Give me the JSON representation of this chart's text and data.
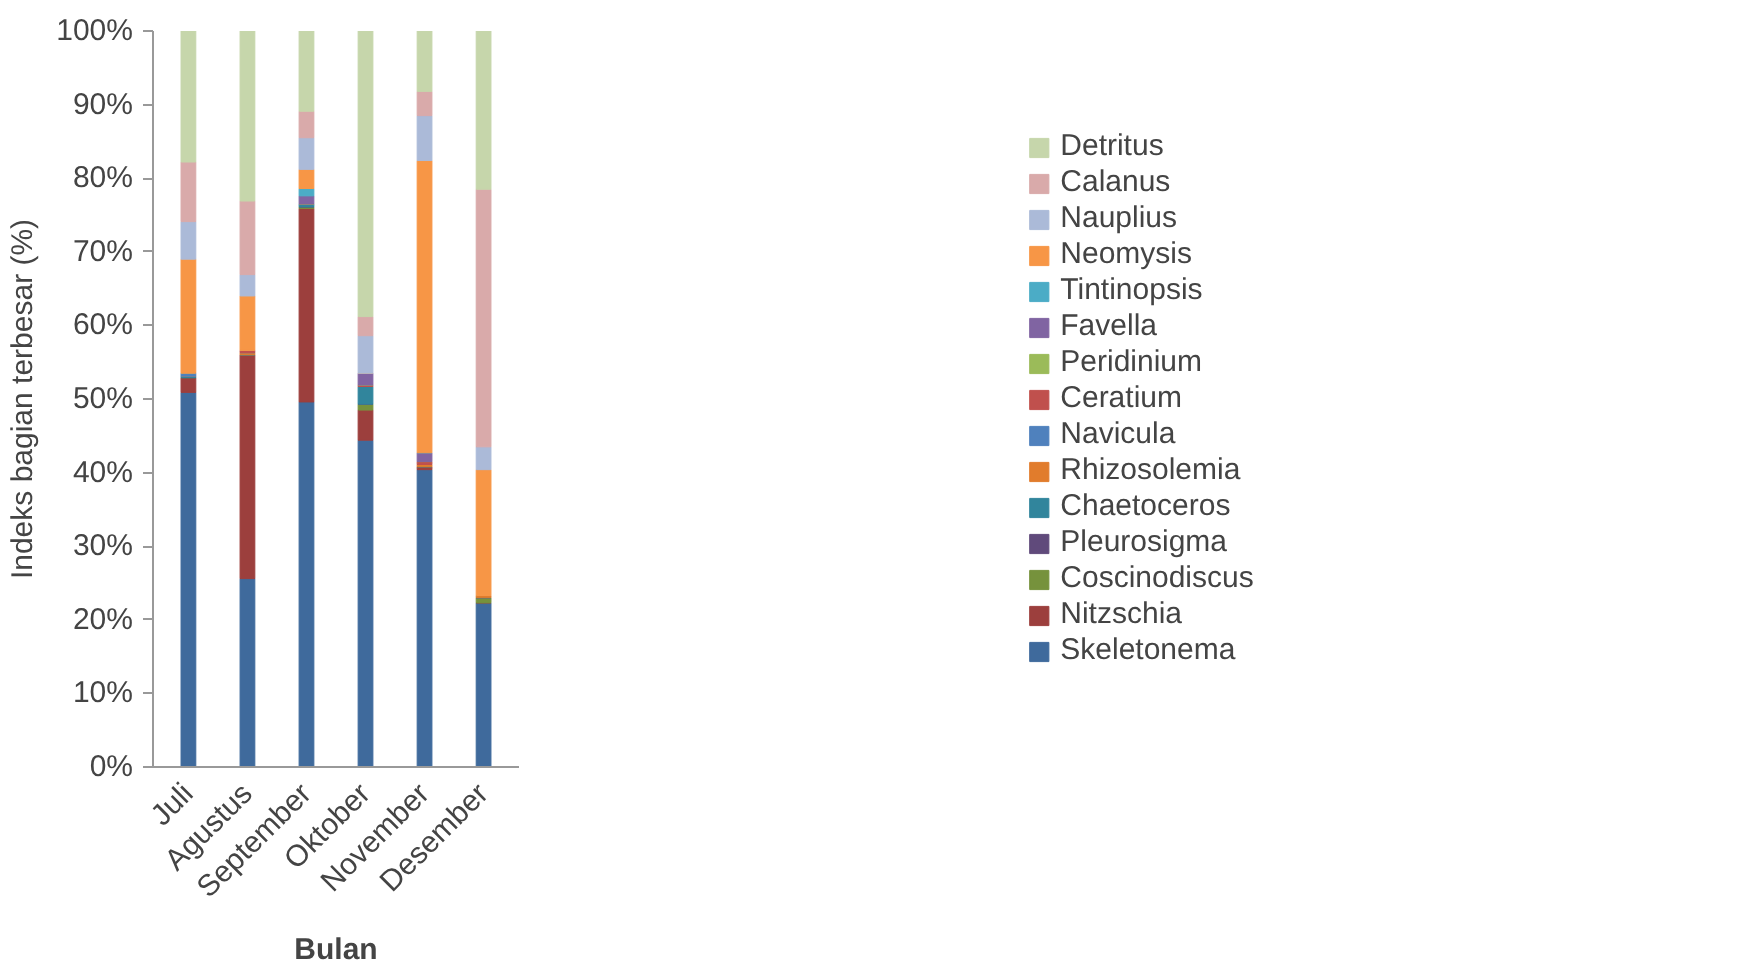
{
  "chart_data": {
    "type": "bar",
    "stacked": true,
    "xlabel": "Bulan",
    "ylabel": "Indeks bagian terbesar (%)",
    "categories": [
      "Juli",
      "Agustus",
      "September",
      "Oktober",
      "November",
      "Desember"
    ],
    "ylim": [
      0,
      100
    ],
    "yticks": [
      {
        "value": 0,
        "label": "0%"
      },
      {
        "value": 10,
        "label": "10%"
      },
      {
        "value": 20,
        "label": "20%"
      },
      {
        "value": 30,
        "label": "30%"
      },
      {
        "value": 40,
        "label": "40%"
      },
      {
        "value": 50,
        "label": "50%"
      },
      {
        "value": 60,
        "label": "60%"
      },
      {
        "value": 70,
        "label": "70%"
      },
      {
        "value": 80,
        "label": "80%"
      },
      {
        "value": 90,
        "label": "90%"
      },
      {
        "value": 100,
        "label": "100%"
      }
    ],
    "grid": false,
    "legend": "right",
    "series": [
      {
        "name": "Skeletonema",
        "color": "#3f6a9c",
        "values": [
          50.9,
          25.6,
          49.6,
          44.4,
          40.4,
          22.3
        ]
      },
      {
        "name": "Nitzschia",
        "color": "#9c3f3d",
        "values": [
          2.0,
          30.4,
          26.3,
          4.1,
          0.4,
          0
        ]
      },
      {
        "name": "Coscinodiscus",
        "color": "#76923c",
        "values": [
          0,
          0,
          0.2,
          0.8,
          0,
          0.7
        ]
      },
      {
        "name": "Pleurosigma",
        "color": "#604a7b",
        "values": [
          0,
          0,
          0,
          0,
          0,
          0
        ]
      },
      {
        "name": "Chaetoceros",
        "color": "#31859c",
        "values": [
          0.2,
          0,
          0.4,
          2.4,
          0,
          0
        ]
      },
      {
        "name": "Rhizosolemia",
        "color": "#e17c2c",
        "values": [
          0,
          0.3,
          0,
          0,
          0.3,
          0.3
        ]
      },
      {
        "name": "Navicula",
        "color": "#4f81bd",
        "values": [
          0.4,
          0,
          0,
          0,
          0,
          0
        ]
      },
      {
        "name": "Ceratium",
        "color": "#c0504d",
        "values": [
          0,
          0.3,
          0,
          0.2,
          0.4,
          0
        ]
      },
      {
        "name": "Peridinium",
        "color": "#9bbb59",
        "values": [
          0,
          0,
          0,
          0,
          0,
          0
        ]
      },
      {
        "name": "Favella",
        "color": "#8064a2",
        "values": [
          0,
          0,
          1.1,
          1.6,
          1.2,
          0
        ]
      },
      {
        "name": "Tintinopsis",
        "color": "#4bacc6",
        "values": [
          0,
          0,
          1.0,
          0,
          0,
          0
        ]
      },
      {
        "name": "Neomysis",
        "color": "#f79646",
        "values": [
          15.5,
          7.4,
          2.6,
          0,
          39.7,
          17.1
        ]
      },
      {
        "name": "Nauplius",
        "color": "#abbad8",
        "values": [
          5.1,
          2.9,
          4.3,
          5.1,
          6.1,
          3.1
        ]
      },
      {
        "name": "Calanus",
        "color": "#d9aaaa",
        "values": [
          8.1,
          10.0,
          3.6,
          2.6,
          3.3,
          35.0
        ]
      },
      {
        "name": "Detritus",
        "color": "#c6d6ab",
        "values": [
          17.8,
          23.1,
          10.9,
          38.8,
          8.2,
          21.5
        ]
      }
    ]
  }
}
